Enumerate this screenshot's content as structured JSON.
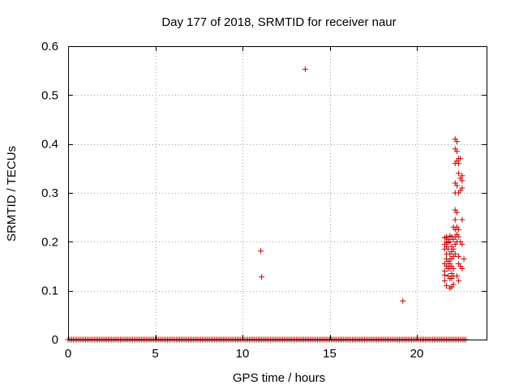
{
  "chart_data": {
    "type": "scatter",
    "title": "Day 177 of 2018, SRMTID for receiver naur",
    "xlabel": "GPS time / hours",
    "ylabel": "SRMTID / TECUs",
    "xlim": [
      0,
      24
    ],
    "ylim": [
      0,
      0.6
    ],
    "grid": true,
    "marker": "+",
    "series_color": "#cc0000",
    "x_ticks": [
      0,
      5,
      10,
      15,
      20
    ],
    "y_ticks": [
      0,
      0.1,
      0.2,
      0.3,
      0.4,
      0.5,
      0.6
    ],
    "x_tick_labels": [
      "0",
      "5",
      "10",
      "15",
      "20"
    ],
    "y_tick_labels": [
      "0",
      "0.1",
      "0.2",
      "0.3",
      "0.4",
      "0.5",
      "0.6"
    ],
    "zero_baseline": {
      "x_start": 0.0,
      "x_end": 22.85,
      "step": 0.1,
      "y": 0
    },
    "points": [
      [
        13.6,
        0.553
      ],
      [
        11.05,
        0.181
      ],
      [
        11.1,
        0.128
      ],
      [
        19.2,
        0.079
      ],
      [
        21.6,
        0.208
      ],
      [
        21.6,
        0.195
      ],
      [
        21.6,
        0.185
      ],
      [
        21.6,
        0.155
      ],
      [
        21.6,
        0.14
      ],
      [
        21.6,
        0.132
      ],
      [
        21.6,
        0.12
      ],
      [
        21.7,
        0.21
      ],
      [
        21.7,
        0.2
      ],
      [
        21.7,
        0.19
      ],
      [
        21.7,
        0.175
      ],
      [
        21.7,
        0.165
      ],
      [
        21.7,
        0.15
      ],
      [
        21.7,
        0.11
      ],
      [
        21.8,
        0.205
      ],
      [
        21.8,
        0.198
      ],
      [
        21.8,
        0.185
      ],
      [
        21.8,
        0.16
      ],
      [
        21.8,
        0.15
      ],
      [
        21.8,
        0.145
      ],
      [
        21.8,
        0.13
      ],
      [
        21.9,
        0.212
      ],
      [
        21.9,
        0.2
      ],
      [
        21.9,
        0.175
      ],
      [
        21.9,
        0.165
      ],
      [
        21.9,
        0.155
      ],
      [
        21.9,
        0.145
      ],
      [
        21.9,
        0.125
      ],
      [
        21.9,
        0.105
      ],
      [
        22.0,
        0.21
      ],
      [
        22.0,
        0.19
      ],
      [
        22.0,
        0.18
      ],
      [
        22.0,
        0.165
      ],
      [
        22.0,
        0.15
      ],
      [
        22.0,
        0.135
      ],
      [
        22.0,
        0.125
      ],
      [
        22.0,
        0.108
      ],
      [
        22.1,
        0.23
      ],
      [
        22.1,
        0.205
      ],
      [
        22.1,
        0.185
      ],
      [
        22.1,
        0.17
      ],
      [
        22.1,
        0.145
      ],
      [
        22.1,
        0.13
      ],
      [
        22.1,
        0.113
      ],
      [
        22.2,
        0.41
      ],
      [
        22.2,
        0.39
      ],
      [
        22.2,
        0.36
      ],
      [
        22.2,
        0.32
      ],
      [
        22.2,
        0.3
      ],
      [
        22.2,
        0.265
      ],
      [
        22.2,
        0.245
      ],
      [
        22.2,
        0.225
      ],
      [
        22.2,
        0.21
      ],
      [
        22.2,
        0.195
      ],
      [
        22.2,
        0.175
      ],
      [
        22.3,
        0.405
      ],
      [
        22.3,
        0.385
      ],
      [
        22.3,
        0.365
      ],
      [
        22.3,
        0.315
      ],
      [
        22.3,
        0.26
      ],
      [
        22.3,
        0.23
      ],
      [
        22.3,
        0.215
      ],
      [
        22.3,
        0.2
      ],
      [
        22.3,
        0.13
      ],
      [
        22.4,
        0.37
      ],
      [
        22.4,
        0.36
      ],
      [
        22.4,
        0.34
      ],
      [
        22.4,
        0.3
      ],
      [
        22.4,
        0.225
      ],
      [
        22.4,
        0.21
      ],
      [
        22.4,
        0.17
      ],
      [
        22.4,
        0.155
      ],
      [
        22.4,
        0.12
      ],
      [
        22.5,
        0.37
      ],
      [
        22.5,
        0.33
      ],
      [
        22.5,
        0.305
      ],
      [
        22.5,
        0.2
      ],
      [
        22.5,
        0.15
      ],
      [
        22.6,
        0.335
      ],
      [
        22.6,
        0.325
      ],
      [
        22.6,
        0.31
      ],
      [
        22.6,
        0.245
      ],
      [
        22.6,
        0.195
      ],
      [
        22.6,
        0.145
      ],
      [
        22.7,
        0.165
      ]
    ]
  }
}
